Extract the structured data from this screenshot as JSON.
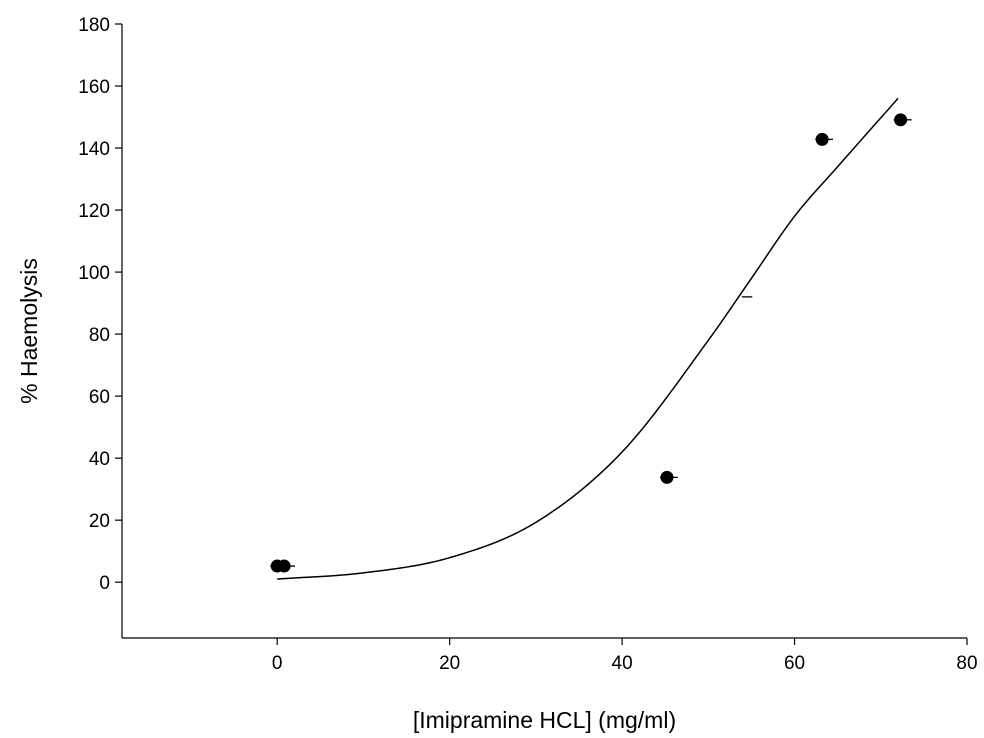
{
  "chart_data": {
    "type": "scatter",
    "title": "",
    "xlabel": "[Imipramine HCL] (mg/ml)",
    "ylabel": "% Haemolysis",
    "xlim": [
      -18,
      80
    ],
    "ylim": [
      -18,
      180
    ],
    "xticks": [
      0,
      20,
      40,
      60,
      80
    ],
    "yticks": [
      0,
      20,
      40,
      60,
      80,
      100,
      120,
      140,
      160,
      180
    ],
    "grid": false,
    "legend": "none",
    "colors": {
      "marker": "#000000",
      "line": "#000000",
      "axis": "#000000"
    },
    "series": [
      {
        "points": [
          {
            "x": 0,
            "y": 5.2,
            "xerr": 0.8
          },
          {
            "x": 0.8,
            "y": 5.2,
            "xerr": 0.8
          },
          {
            "x": 45.2,
            "y": 33.8,
            "xerr": 0.8
          },
          {
            "x": 63.2,
            "y": 142.8,
            "xerr": 0.8
          },
          {
            "x": 72.3,
            "y": 149.1,
            "xerr": 0.8
          }
        ]
      }
    ],
    "fit_curve": {
      "type": "sigmoid",
      "x_range": [
        0,
        72
      ],
      "points": [
        [
          0,
          1.0
        ],
        [
          10,
          3.0
        ],
        [
          20,
          7.9
        ],
        [
          30,
          19.3
        ],
        [
          40,
          42.0
        ],
        [
          50,
          78.0
        ],
        [
          55,
          98.0
        ],
        [
          60,
          118.0
        ],
        [
          65,
          134.0
        ],
        [
          72,
          156.0
        ]
      ]
    },
    "error_only_marker": {
      "x": 54.5,
      "y": 92.0,
      "xerr": 0.6
    }
  }
}
